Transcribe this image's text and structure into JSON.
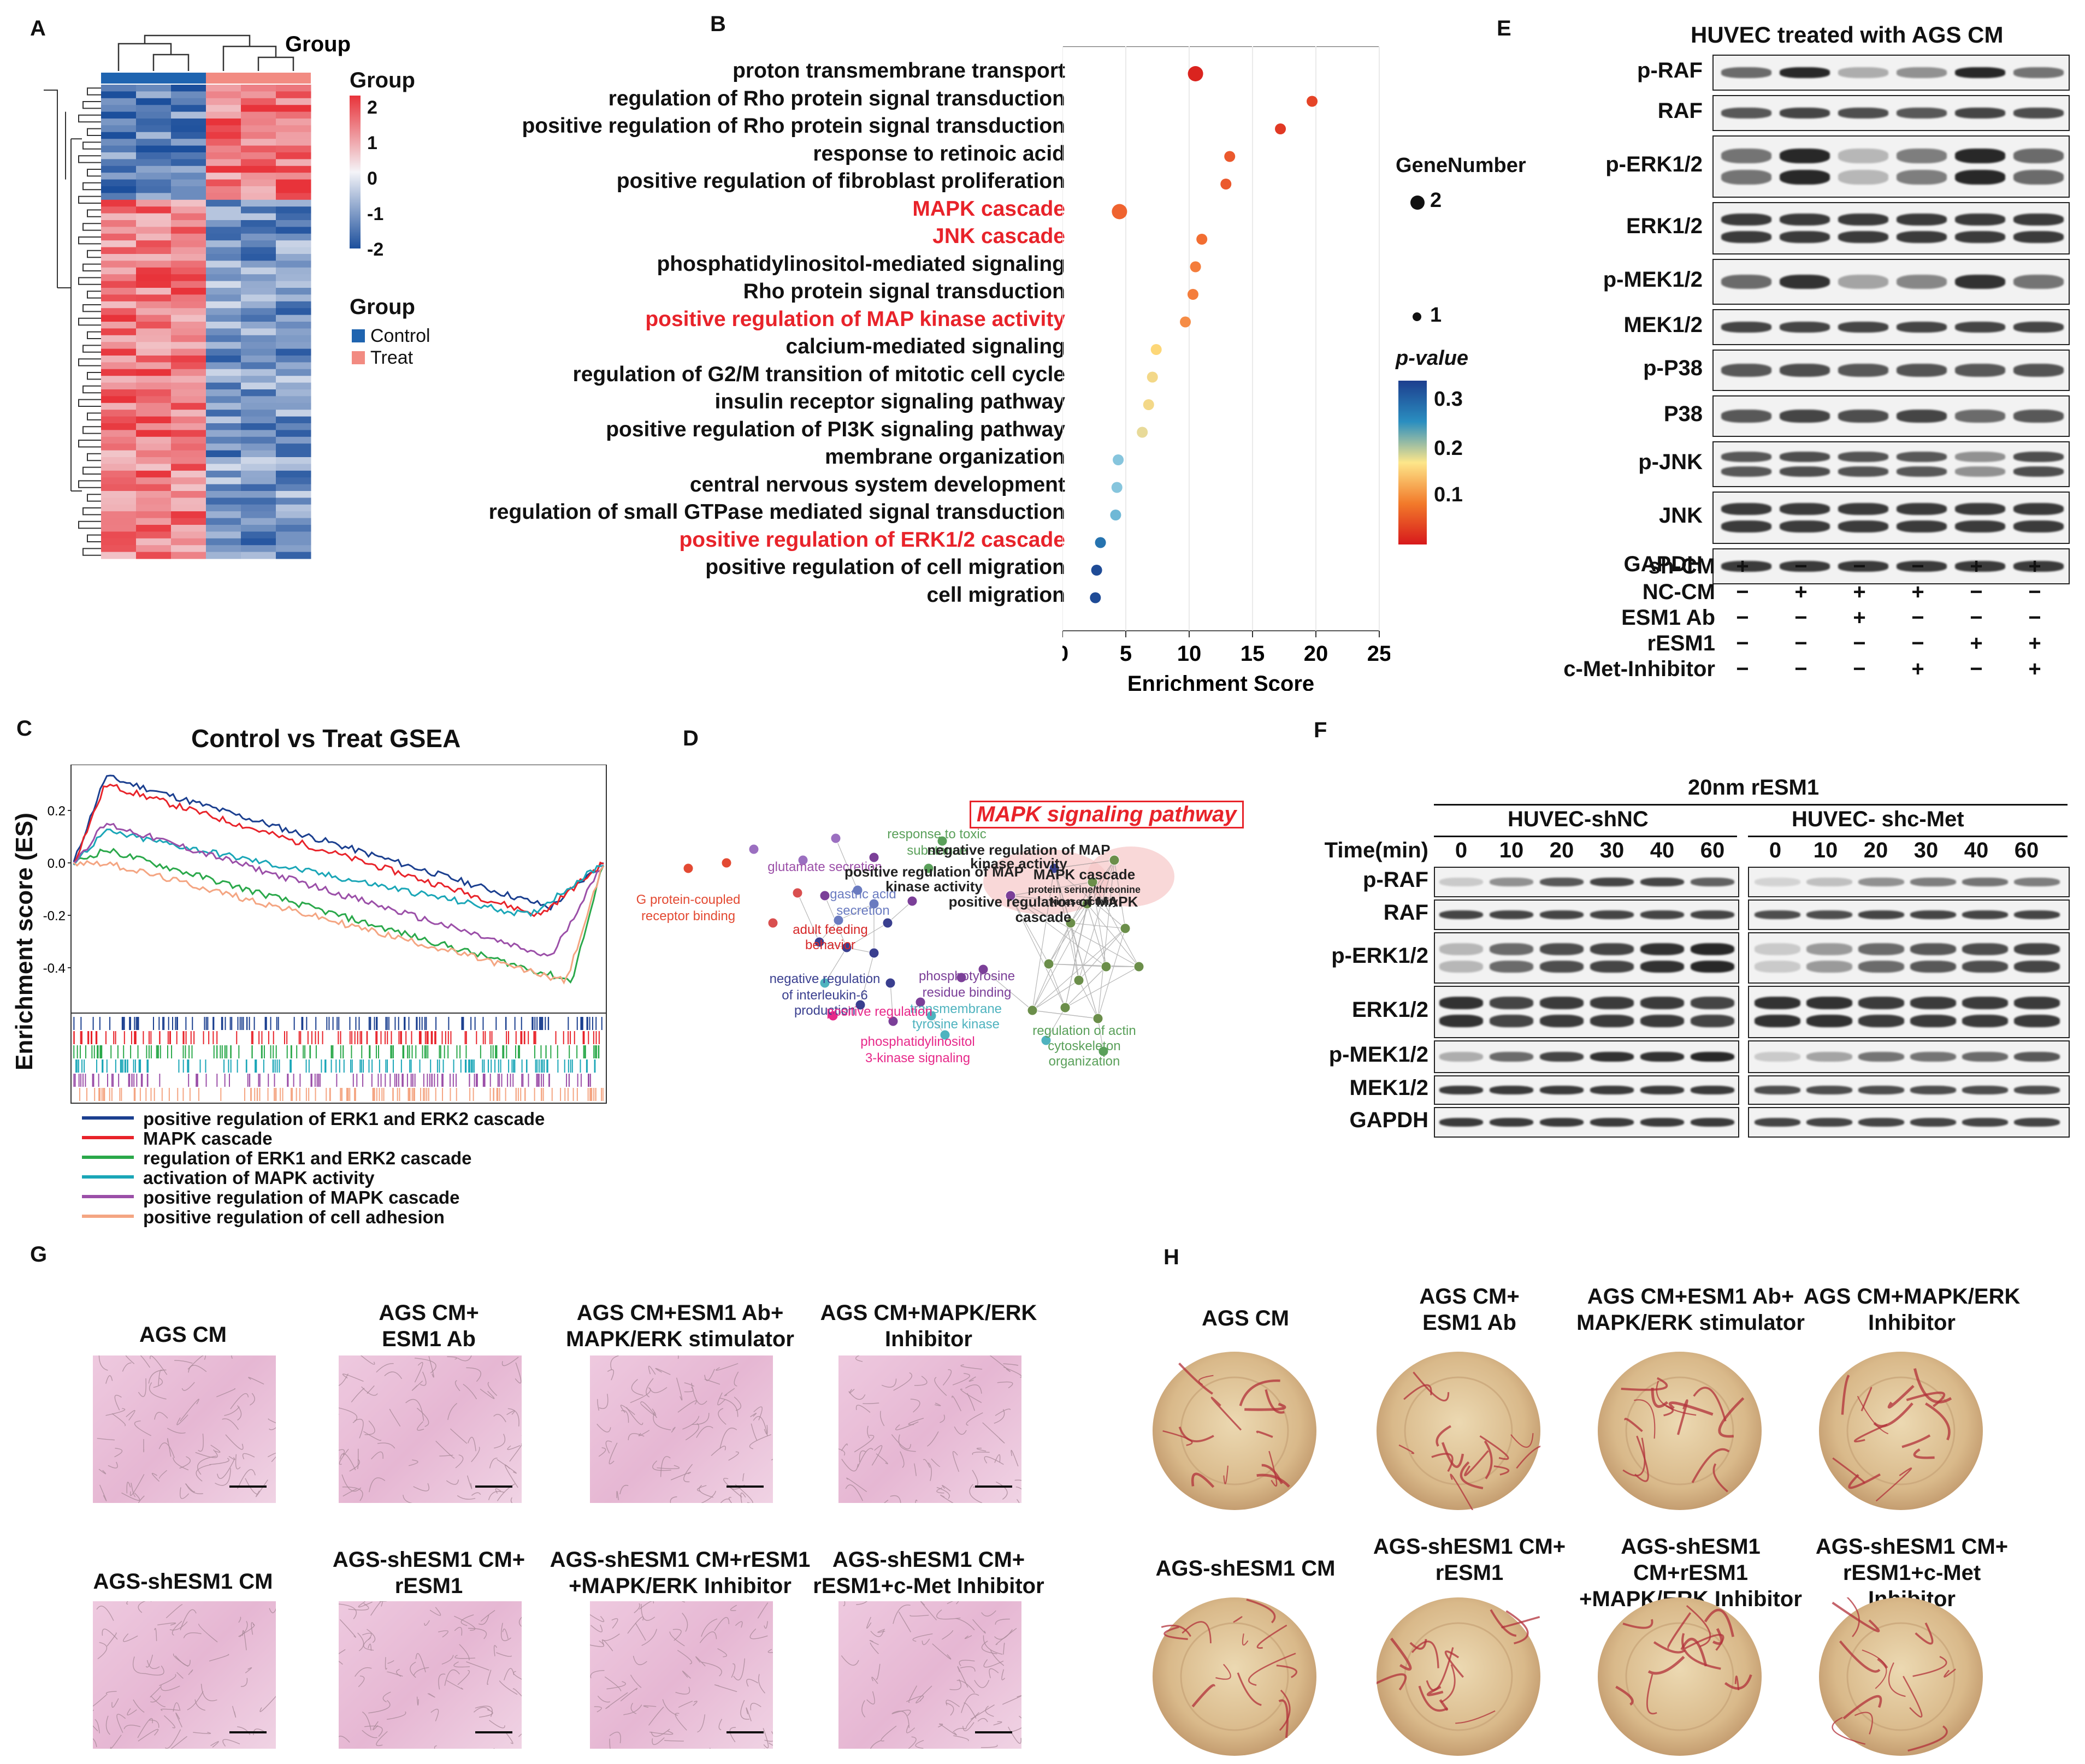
{
  "panels": {
    "A": "A",
    "B": "B",
    "C": "C",
    "D": "D",
    "E": "E",
    "F": "F",
    "G": "G",
    "H": "H"
  },
  "heatmap": {
    "legend_title": "Group",
    "scale_ticks": [
      "2",
      "1",
      "0",
      "-1",
      "-2"
    ],
    "group_title": "Group",
    "groups": [
      "Control",
      "Treat"
    ],
    "colors": {
      "control": "#1f64b0",
      "treat": "#f28b82",
      "high": "#e8333a",
      "low": "#1c4f9c",
      "mid": "#f4f4f8"
    }
  },
  "chart_data": {
    "type": "scatter",
    "terms": [
      "proton transmembrane transport",
      "regulation of Rho protein signal transduction",
      "positive regulation of Rho protein signal transduction",
      "response to retinoic acid",
      "positive regulation of fibroblast proliferation",
      "MAPK cascade",
      "JNK cascade",
      "phosphatidylinositol-mediated signaling",
      "Rho protein signal transduction",
      "positive regulation of MAP kinase activity",
      "calcium-mediated signaling",
      "regulation of G2/M transition of mitotic cell cycle",
      "insulin receptor signaling pathway",
      "positive regulation of PI3K signaling pathway",
      "membrane organization",
      "central nervous system development",
      "regulation of small GTPase mediated signal transduction",
      "positive regulation of ERK1/2 cascade",
      "positive regulation of cell migration",
      "cell migration"
    ],
    "highlighted": [
      false,
      false,
      false,
      false,
      false,
      true,
      true,
      false,
      false,
      true,
      false,
      false,
      false,
      false,
      false,
      false,
      false,
      true,
      false,
      false
    ],
    "enrichment_score": [
      10.5,
      19.7,
      17.2,
      13.2,
      12.9,
      4.5,
      11.0,
      10.5,
      10.3,
      9.7,
      7.4,
      7.1,
      6.8,
      6.3,
      4.4,
      4.3,
      4.2,
      3.0,
      2.7,
      2.6
    ],
    "gene_number": [
      2,
      1,
      1,
      1,
      1,
      2,
      1,
      1,
      1,
      1,
      1,
      1,
      1,
      1,
      1,
      1,
      1,
      1,
      1,
      1
    ],
    "p_value": [
      0.01,
      0.04,
      0.03,
      0.06,
      0.06,
      0.07,
      0.08,
      0.09,
      0.09,
      0.1,
      0.15,
      0.16,
      0.16,
      0.17,
      0.24,
      0.24,
      0.25,
      0.3,
      0.33,
      0.33
    ],
    "xlabel": "Enrichment Score",
    "xlim": [
      0,
      25
    ],
    "xticks": [
      "0",
      "5",
      "10",
      "15",
      "20",
      "25"
    ],
    "legend_size_title": "GeneNumber",
    "legend_sizes": [
      "2",
      "1"
    ],
    "legend_color_title": "p-value",
    "legend_color_ticks": [
      "0.3",
      "0.2",
      "0.1"
    ]
  },
  "gsea": {
    "title": "Control vs Treat GSEA",
    "ylabel": "Enrichment score (ES)",
    "yticks": [
      "0.2",
      "0.0",
      "-0.2",
      "-0.4"
    ],
    "series": [
      {
        "name": "positive regulation of ERK1 and ERK2 cascade",
        "color": "#1b3f8f"
      },
      {
        "name": "MAPK cascade",
        "color": "#e8232a"
      },
      {
        "name": "regulation of ERK1 and ERK2 cascade",
        "color": "#2aa84a"
      },
      {
        "name": "activation of MAPK activity",
        "color": "#1aa6b7"
      },
      {
        "name": "positive regulation of MAPK cascade",
        "color": "#9b4fa8"
      },
      {
        "name": "positive regulation of cell adhesion",
        "color": "#f4a582"
      }
    ]
  },
  "network": {
    "title": "MAPK signaling pathway",
    "labels": [
      {
        "text": "response to toxic",
        "color": "#5aa05a"
      },
      {
        "text": "substance",
        "color": "#5aa05a"
      },
      {
        "text": "glutamate secretion",
        "color": "#9b4fa8"
      },
      {
        "text": "G protein-coupled",
        "color": "#e34a33"
      },
      {
        "text": "receptor binding",
        "color": "#e34a33"
      },
      {
        "text": "gastric acid",
        "color": "#6a7bc0"
      },
      {
        "text": "secretion",
        "color": "#6a7bc0"
      },
      {
        "text": "adult feeding",
        "color": "#d62728"
      },
      {
        "text": "behavior",
        "color": "#d62728"
      },
      {
        "text": "negative regulation",
        "color": "#3a3f8f"
      },
      {
        "text": "of interleukin-6",
        "color": "#3a3f8f"
      },
      {
        "text": "production",
        "color": "#3a3f8f"
      },
      {
        "text": "phosphotyrosine",
        "color": "#7b3f98"
      },
      {
        "text": "residue binding",
        "color": "#7b3f98"
      },
      {
        "text": "transmembrane",
        "color": "#4fb3bf"
      },
      {
        "text": "tyrosine kinase",
        "color": "#4fb3bf"
      },
      {
        "text": "positive regulation",
        "color": "#e7298a"
      },
      {
        "text": "phosphatidylinositol",
        "color": "#e7298a"
      },
      {
        "text": "3-kinase signaling",
        "color": "#e7298a"
      },
      {
        "text": "negative regulation of MAP",
        "color": "#222"
      },
      {
        "text": "kinase activity",
        "color": "#222"
      },
      {
        "text": "positive regulation of MAP",
        "color": "#222"
      },
      {
        "text": "kinase activity",
        "color": "#222"
      },
      {
        "text": "MAPK cascade",
        "color": "#222"
      },
      {
        "text": "protein serine/threonine",
        "color": "#222"
      },
      {
        "text": "kinase activity",
        "color": "#222"
      },
      {
        "text": "positive regulation of MAPK",
        "color": "#222"
      },
      {
        "text": "cascade",
        "color": "#222"
      },
      {
        "text": "regulation of actin",
        "color": "#5aa05a"
      },
      {
        "text": "cytoskeleton",
        "color": "#5aa05a"
      },
      {
        "text": "organization",
        "color": "#5aa05a"
      }
    ]
  },
  "blotE": {
    "title": "HUVEC treated with AGS CM",
    "rows": [
      "p-RAF",
      "RAF",
      "p-ERK1/2",
      "ERK1/2",
      "p-MEK1/2",
      "MEK1/2",
      "p-P38",
      "P38",
      "p-JNK",
      "JNK",
      "GAPDH"
    ],
    "doublet": [
      false,
      false,
      true,
      true,
      false,
      false,
      false,
      false,
      true,
      true,
      false
    ],
    "intensity": [
      [
        0.6,
        0.95,
        0.25,
        0.4,
        0.95,
        0.55
      ],
      [
        0.7,
        0.8,
        0.75,
        0.7,
        0.8,
        0.75
      ],
      [
        0.55,
        0.95,
        0.2,
        0.5,
        0.95,
        0.6
      ],
      [
        0.85,
        0.85,
        0.85,
        0.85,
        0.85,
        0.85
      ],
      [
        0.6,
        0.9,
        0.3,
        0.45,
        0.9,
        0.55
      ],
      [
        0.8,
        0.8,
        0.8,
        0.8,
        0.8,
        0.8
      ],
      [
        0.7,
        0.75,
        0.7,
        0.72,
        0.7,
        0.72
      ],
      [
        0.7,
        0.8,
        0.75,
        0.8,
        0.6,
        0.7
      ],
      [
        0.7,
        0.75,
        0.72,
        0.7,
        0.4,
        0.75
      ],
      [
        0.85,
        0.85,
        0.85,
        0.85,
        0.85,
        0.85
      ],
      [
        0.85,
        0.85,
        0.85,
        0.85,
        0.85,
        0.85
      ]
    ],
    "conditions": [
      {
        "name": "sh-CM",
        "signs": [
          "+",
          "−",
          "−",
          "−",
          "+",
          "+"
        ]
      },
      {
        "name": "NC-CM",
        "signs": [
          "−",
          "+",
          "+",
          "+",
          "−",
          "−"
        ]
      },
      {
        "name": "ESM1 Ab",
        "signs": [
          "−",
          "−",
          "+",
          "−",
          "−",
          "−"
        ]
      },
      {
        "name": "rESM1",
        "signs": [
          "−",
          "−",
          "−",
          "−",
          "+",
          "+"
        ]
      },
      {
        "name": "c-Met-Inhibitor",
        "signs": [
          "−",
          "−",
          "−",
          "+",
          "−",
          "+"
        ]
      }
    ]
  },
  "blotF": {
    "title": "20nm rESM1",
    "group1": "HUVEC-shNC",
    "group2": "HUVEC- shc-Met",
    "time_label": "Time(min)",
    "times": [
      "0",
      "10",
      "20",
      "30",
      "40",
      "60"
    ],
    "rows": [
      "p-RAF",
      "RAF",
      "p-ERK1/2",
      "ERK1/2",
      "p-MEK1/2",
      "MEK1/2",
      "GAPDH"
    ],
    "doublet": [
      false,
      false,
      true,
      true,
      false,
      false,
      false
    ],
    "intensity_g1": [
      [
        0.1,
        0.4,
        0.7,
        0.8,
        0.8,
        0.65
      ],
      [
        0.8,
        0.8,
        0.8,
        0.8,
        0.8,
        0.8
      ],
      [
        0.2,
        0.6,
        0.75,
        0.8,
        0.9,
        0.95
      ],
      [
        0.9,
        0.8,
        0.85,
        0.85,
        0.85,
        0.8
      ],
      [
        0.25,
        0.6,
        0.8,
        0.9,
        0.9,
        0.95
      ],
      [
        0.85,
        0.85,
        0.85,
        0.85,
        0.85,
        0.85
      ],
      [
        0.85,
        0.85,
        0.85,
        0.85,
        0.85,
        0.85
      ]
    ],
    "intensity_g2": [
      [
        0.05,
        0.15,
        0.4,
        0.5,
        0.55,
        0.5
      ],
      [
        0.75,
        0.75,
        0.8,
        0.8,
        0.8,
        0.8
      ],
      [
        0.1,
        0.35,
        0.6,
        0.7,
        0.75,
        0.8
      ],
      [
        0.9,
        0.9,
        0.85,
        0.85,
        0.85,
        0.85
      ],
      [
        0.1,
        0.3,
        0.55,
        0.55,
        0.6,
        0.7
      ],
      [
        0.75,
        0.75,
        0.75,
        0.75,
        0.75,
        0.75
      ],
      [
        0.8,
        0.8,
        0.8,
        0.8,
        0.8,
        0.8
      ]
    ]
  },
  "tube": {
    "captions_top": [
      [
        "AGS CM"
      ],
      [
        "AGS CM+",
        "ESM1 Ab"
      ],
      [
        "AGS CM+ESM1 Ab+",
        "MAPK/ERK stimulator"
      ],
      [
        "AGS CM+MAPK/ERK",
        "Inhibitor"
      ]
    ],
    "captions_bottom": [
      [
        "AGS-shESM1 CM"
      ],
      [
        "AGS-shESM1 CM+",
        "rESM1"
      ],
      [
        "AGS-shESM1 CM+rESM1",
        "+MAPK/ERK Inhibitor"
      ],
      [
        "AGS-shESM1 CM+",
        "rESM1+c-Met Inhibitor"
      ]
    ]
  },
  "cam": {
    "captions_top": [
      [
        "AGS CM"
      ],
      [
        "AGS CM+",
        "ESM1 Ab"
      ],
      [
        "AGS CM+ESM1 Ab+",
        "MAPK/ERK stimulator"
      ],
      [
        "AGS CM+MAPK/ERK",
        "Inhibitor"
      ]
    ],
    "captions_bottom": [
      [
        "AGS-shESM1 CM"
      ],
      [
        "AGS-shESM1 CM+",
        "rESM1"
      ],
      [
        "AGS-shESM1 CM+rESM1",
        "+MAPK/ERK Inhibitor"
      ],
      [
        "AGS-shESM1 CM+",
        "rESM1+c-Met Inhibitor"
      ]
    ]
  }
}
